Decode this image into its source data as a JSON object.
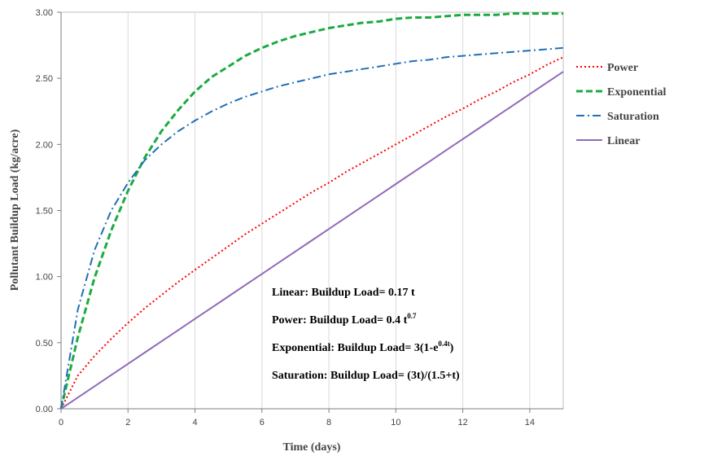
{
  "chart_data": {
    "type": "line",
    "xlabel": "Time (days)",
    "ylabel": "Pollutant Buildup Load (kg/acre)",
    "xlim": [
      0,
      15
    ],
    "ylim": [
      0,
      3.0
    ],
    "x_ticks": [
      0,
      2,
      4,
      6,
      8,
      10,
      12,
      14
    ],
    "x_tick_labels": [
      "0",
      "2",
      "4",
      "6",
      "8",
      "10",
      "12",
      "14"
    ],
    "y_ticks": [
      0,
      0.5,
      1.0,
      1.5,
      2.0,
      2.5,
      3.0
    ],
    "y_tick_labels": [
      "0.00",
      "0.50",
      "1.00",
      "1.50",
      "2.00",
      "2.50",
      "3.00"
    ],
    "grid": "vertical",
    "legend_position": "right",
    "x": [
      0,
      0.5,
      1,
      1.5,
      2,
      2.5,
      3,
      3.5,
      4,
      4.5,
      5,
      5.5,
      6,
      6.5,
      7,
      7.5,
      8,
      8.5,
      9,
      9.5,
      10,
      10.5,
      11,
      11.5,
      12,
      12.5,
      13,
      13.5,
      14,
      14.5,
      15
    ],
    "series": [
      {
        "name": "Power",
        "color": "#ff0000",
        "dash": "dotted",
        "values": [
          0,
          0.25,
          0.4,
          0.53,
          0.65,
          0.76,
          0.86,
          0.96,
          1.05,
          1.14,
          1.23,
          1.32,
          1.4,
          1.48,
          1.56,
          1.64,
          1.71,
          1.79,
          1.86,
          1.93,
          2.0,
          2.07,
          2.14,
          2.21,
          2.27,
          2.34,
          2.4,
          2.47,
          2.53,
          2.6,
          2.66
        ]
      },
      {
        "name": "Exponential",
        "color": "#1aab40",
        "dash": "dashed",
        "values": [
          0,
          0.54,
          0.99,
          1.35,
          1.65,
          1.9,
          2.1,
          2.26,
          2.4,
          2.51,
          2.59,
          2.67,
          2.73,
          2.78,
          2.82,
          2.85,
          2.88,
          2.9,
          2.92,
          2.93,
          2.95,
          2.96,
          2.96,
          2.97,
          2.98,
          2.98,
          2.98,
          2.99,
          2.99,
          2.99,
          2.99
        ]
      },
      {
        "name": "Saturation",
        "color": "#1f6fb5",
        "dash": "dashdot",
        "values": [
          0,
          0.75,
          1.2,
          1.5,
          1.71,
          1.88,
          2.0,
          2.1,
          2.18,
          2.25,
          2.31,
          2.36,
          2.4,
          2.44,
          2.47,
          2.5,
          2.53,
          2.55,
          2.57,
          2.59,
          2.61,
          2.63,
          2.64,
          2.66,
          2.67,
          2.68,
          2.69,
          2.7,
          2.71,
          2.72,
          2.73
        ]
      },
      {
        "name": "Linear",
        "color": "#8e6bb8",
        "dash": "solid",
        "values": [
          0,
          0.085,
          0.17,
          0.255,
          0.34,
          0.425,
          0.51,
          0.595,
          0.68,
          0.765,
          0.85,
          0.935,
          1.02,
          1.105,
          1.19,
          1.275,
          1.36,
          1.445,
          1.53,
          1.615,
          1.7,
          1.785,
          1.87,
          1.955,
          2.04,
          2.125,
          2.21,
          2.295,
          2.38,
          2.465,
          2.55
        ]
      }
    ],
    "annotations": [
      {
        "label": "Linear: Buildup Load= 0.17 t",
        "sup": "",
        "after": ""
      },
      {
        "label": "Power: Buildup Load= 0.4 t",
        "sup": "0.7",
        "after": ""
      },
      {
        "label": "Exponential: Buildup Load= 3(1-e",
        "sup": "0.4t",
        "after": ")"
      },
      {
        "label": "Saturation: Buildup Load= (3t)/(1.5+t)",
        "sup": "",
        "after": ""
      }
    ]
  }
}
